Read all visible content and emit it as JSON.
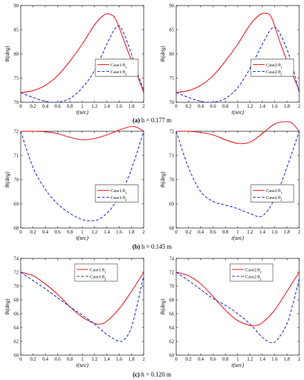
{
  "figure": {
    "captions": [
      {
        "letter": "(a)",
        "text": " h = 0.177 m"
      },
      {
        "letter": "(b)",
        "text": " h = 0.145 m"
      },
      {
        "letter": "(c)",
        "text": " h = 0.120 m"
      }
    ]
  },
  "chart_data": [
    {
      "type": "line",
      "panel": "a-left",
      "xlabel": "t(sec)",
      "ylabel": "θi(deg)",
      "xlim": [
        0,
        2
      ],
      "ylim": [
        70,
        90
      ],
      "xticks": [
        "0",
        "0.2",
        "0.4",
        "0.6",
        "0.8",
        "1",
        "1.2",
        "1.4",
        "1.6",
        "1.8",
        "2"
      ],
      "yticks": [
        "70",
        "75",
        "80",
        "85",
        "90"
      ],
      "legend_position": "center-right",
      "series": [
        {
          "name": "Case1:θ1",
          "color": "#e8141c",
          "dash": "solid",
          "x": [
            0,
            0.2,
            0.4,
            0.6,
            0.8,
            1.0,
            1.2,
            1.35,
            1.45,
            1.55,
            1.7,
            1.85,
            2.0
          ],
          "y": [
            72,
            72.4,
            73.5,
            75.5,
            78.5,
            82,
            86,
            88,
            88.2,
            87,
            82,
            77,
            72
          ]
        },
        {
          "name": "Case1:θ2",
          "color": "#1a2bd8",
          "dash": "dashed",
          "x": [
            0,
            0.2,
            0.4,
            0.6,
            0.8,
            1.0,
            1.2,
            1.4,
            1.55,
            1.65,
            1.8,
            1.9,
            2.0
          ],
          "y": [
            72,
            71,
            70.2,
            70,
            70.8,
            73,
            76.5,
            82,
            85.5,
            85,
            80,
            76,
            72.5
          ]
        }
      ]
    },
    {
      "type": "line",
      "panel": "a-right",
      "xlabel": "t(sec)",
      "ylabel": "θi(deg)",
      "xlim": [
        0,
        2
      ],
      "ylim": [
        70,
        90
      ],
      "xticks": [
        "0",
        "0.2",
        "0.4",
        "0.6",
        "0.8",
        "1",
        "1.2",
        "1.4",
        "1.6",
        "1.8",
        "2"
      ],
      "yticks": [
        "70",
        "75",
        "80",
        "85",
        "90"
      ],
      "legend_position": "center-right",
      "series": [
        {
          "name": "Case2:θ1",
          "color": "#e8141c",
          "dash": "solid",
          "x": [
            0,
            0.2,
            0.4,
            0.6,
            0.8,
            1.0,
            1.2,
            1.35,
            1.45,
            1.55,
            1.7,
            1.85,
            2.0
          ],
          "y": [
            72,
            72.4,
            73.5,
            75.5,
            78.5,
            82,
            86,
            88,
            88.4,
            87.5,
            82,
            77,
            72.5
          ]
        },
        {
          "name": "Case2:θ2",
          "color": "#1a2bd8",
          "dash": "dashed",
          "x": [
            0,
            0.2,
            0.4,
            0.6,
            0.8,
            1.0,
            1.2,
            1.4,
            1.55,
            1.65,
            1.8,
            1.9,
            2.0
          ],
          "y": [
            72,
            71,
            70.2,
            70,
            70.8,
            73,
            77,
            82,
            85.2,
            85,
            81,
            77,
            72
          ]
        }
      ]
    },
    {
      "type": "line",
      "panel": "b-left",
      "xlabel": "t(sec)",
      "ylabel": "θi(deg)",
      "xlim": [
        0,
        2
      ],
      "ylim": [
        68,
        72
      ],
      "xticks": [
        "0",
        "0.2",
        "0.4",
        "0.6",
        "0.8",
        "1",
        "1.2",
        "1.4",
        "1.6",
        "1.8",
        "2"
      ],
      "yticks": [
        "68",
        "69",
        "70",
        "71",
        "72"
      ],
      "legend_position": "center-right",
      "series": [
        {
          "name": "Case1:θ1",
          "color": "#e8141c",
          "dash": "solid",
          "x": [
            0,
            0.2,
            0.4,
            0.6,
            0.8,
            1.0,
            1.2,
            1.4,
            1.6,
            1.8,
            1.9,
            2.0
          ],
          "y": [
            72,
            72,
            71.98,
            71.9,
            71.75,
            71.65,
            71.7,
            71.85,
            72.05,
            72.2,
            72.15,
            72
          ]
        },
        {
          "name": "Case1:θ2",
          "color": "#1a2bd8",
          "dash": "dashed",
          "x": [
            0,
            0.2,
            0.4,
            0.6,
            0.8,
            1.0,
            1.15,
            1.3,
            1.5,
            1.7,
            1.85,
            2.0
          ],
          "y": [
            72,
            70.5,
            69.6,
            69,
            68.6,
            68.35,
            68.3,
            68.4,
            68.9,
            69.8,
            70.8,
            72
          ]
        }
      ]
    },
    {
      "type": "line",
      "panel": "b-right",
      "xlabel": "t(sec)",
      "ylabel": "θi(deg)",
      "xlim": [
        0,
        2
      ],
      "ylim": [
        68,
        72
      ],
      "xticks": [
        "0",
        "0.2",
        "0.4",
        "0.6",
        "0.8",
        "1",
        "1.2",
        "1.4",
        "1.6",
        "1.8",
        "2"
      ],
      "yticks": [
        "68",
        "69",
        "70",
        "71",
        "72"
      ],
      "legend_position": "center-right",
      "series": [
        {
          "name": "Case2:θ1",
          "color": "#e8141c",
          "dash": "solid",
          "x": [
            0,
            0.2,
            0.4,
            0.6,
            0.8,
            1.0,
            1.2,
            1.4,
            1.6,
            1.8,
            1.9,
            2.0
          ],
          "y": [
            72,
            72,
            71.95,
            71.85,
            71.65,
            71.5,
            71.55,
            71.9,
            72.3,
            72.4,
            72.3,
            72
          ]
        },
        {
          "name": "Case2:θ2",
          "color": "#1a2bd8",
          "dash": "dashed",
          "x": [
            0,
            0.2,
            0.4,
            0.6,
            0.8,
            1.0,
            1.2,
            1.4,
            1.6,
            1.8,
            2.0
          ],
          "y": [
            72,
            70.5,
            69.5,
            69.1,
            68.95,
            68.8,
            68.6,
            68.5,
            69.2,
            70.5,
            72
          ]
        }
      ]
    },
    {
      "type": "line",
      "panel": "c-left",
      "xlabel": "t(sec)",
      "ylabel": "θi(deg)",
      "xlim": [
        0,
        2
      ],
      "ylim": [
        60,
        74
      ],
      "xticks": [
        "0",
        "0.2",
        "0.4",
        "0.6",
        "0.8",
        "1",
        "1.2",
        "1.4",
        "1.6",
        "1.8",
        "2"
      ],
      "yticks": [
        "60",
        "62",
        "64",
        "66",
        "68",
        "70",
        "72",
        "74"
      ],
      "legend_position": "top-right",
      "series": [
        {
          "name": "Case1:θ1",
          "color": "#e8141c",
          "dash": "solid",
          "x": [
            0,
            0.2,
            0.4,
            0.6,
            0.8,
            1.0,
            1.2,
            1.3,
            1.4,
            1.6,
            1.8,
            2.0
          ],
          "y": [
            72,
            71.5,
            70.3,
            68.8,
            67,
            65.5,
            64.6,
            64.5,
            64.9,
            66.7,
            69.2,
            72
          ]
        },
        {
          "name": "Case1:θ2",
          "color": "#1a2bd8",
          "dash": "dashed",
          "x": [
            0,
            0.2,
            0.4,
            0.6,
            0.8,
            1.0,
            1.2,
            1.4,
            1.6,
            1.7,
            1.8,
            1.9,
            2.0
          ],
          "y": [
            72,
            70.8,
            69.6,
            68.3,
            67,
            65.8,
            64.5,
            63,
            62,
            62.4,
            64,
            67.5,
            71.5
          ]
        }
      ]
    },
    {
      "type": "line",
      "panel": "c-right",
      "xlabel": "t(sec)",
      "ylabel": "θi(deg)",
      "xlim": [
        0,
        2
      ],
      "ylim": [
        60,
        74
      ],
      "xticks": [
        "0",
        "0.2",
        "0.4",
        "0.6",
        "0.8",
        "1",
        "1.2",
        "1.4",
        "1.6",
        "1.8",
        "2"
      ],
      "yticks": [
        "60",
        "62",
        "64",
        "66",
        "68",
        "70",
        "72",
        "74"
      ],
      "legend_position": "top-right",
      "series": [
        {
          "name": "Case2:θ1",
          "color": "#e8141c",
          "dash": "solid",
          "x": [
            0,
            0.2,
            0.4,
            0.6,
            0.8,
            1.0,
            1.2,
            1.3,
            1.4,
            1.6,
            1.8,
            2.0
          ],
          "y": [
            72,
            71.5,
            70.3,
            68.5,
            66.5,
            65,
            64.3,
            64.3,
            64.7,
            66.5,
            69.2,
            72
          ]
        },
        {
          "name": "Case2:θ2",
          "color": "#1a2bd8",
          "dash": "dashed",
          "x": [
            0,
            0.2,
            0.4,
            0.6,
            0.8,
            1.0,
            1.2,
            1.4,
            1.55,
            1.65,
            1.8,
            1.9,
            2.0
          ],
          "y": [
            72,
            70.8,
            69.5,
            68.2,
            67.2,
            66,
            64.5,
            62.6,
            61.8,
            62.3,
            64.5,
            67.5,
            71
          ]
        }
      ]
    }
  ]
}
